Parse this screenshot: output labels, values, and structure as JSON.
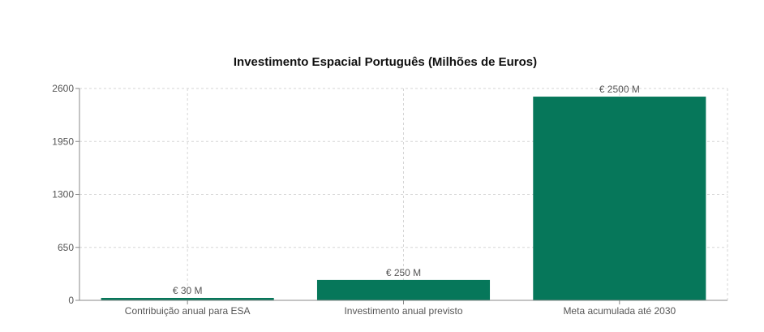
{
  "chart_data": {
    "type": "bar",
    "title": "Investimento Espacial Português (Milhões de Euros)",
    "categories": [
      "Contribuição anual para ESA",
      "Investimento anual previsto",
      "Meta acumulada até 2030"
    ],
    "values": [
      30,
      250,
      2500
    ],
    "data_labels": [
      "€ 30 M",
      "€ 250 M",
      "€ 2500 M"
    ],
    "xlabel": "",
    "ylabel": "",
    "ylim": [
      0,
      2600
    ],
    "yticks": [
      0,
      650,
      1300,
      1950,
      2600
    ],
    "grid": true,
    "legend": "none",
    "bar_color": "#06775a"
  }
}
